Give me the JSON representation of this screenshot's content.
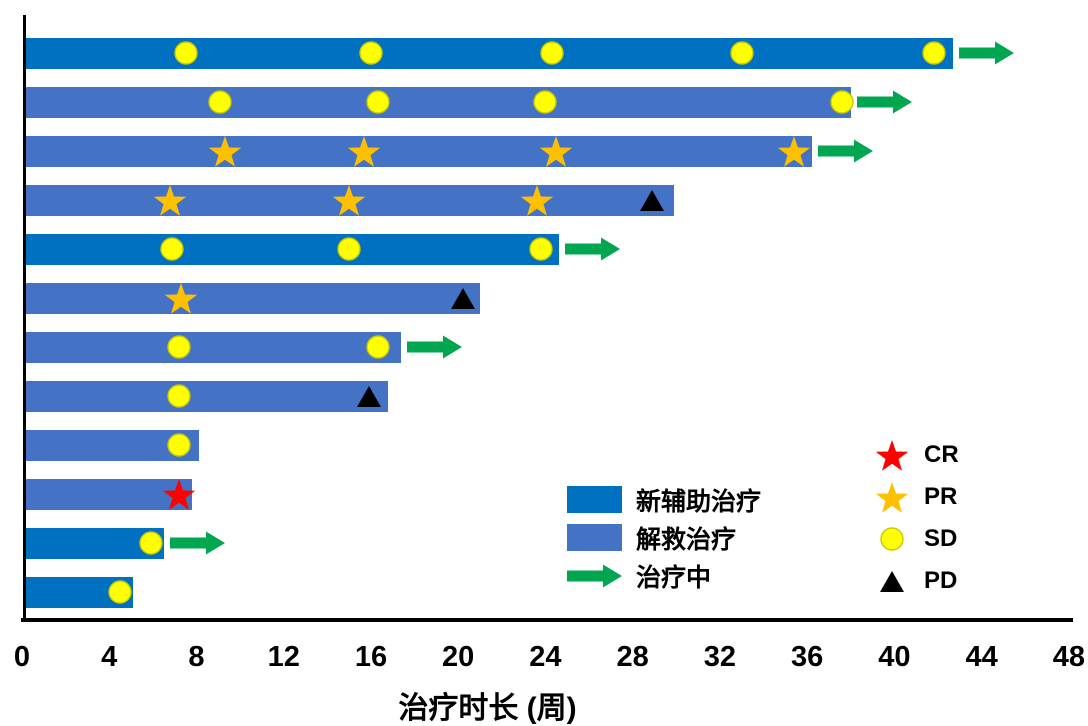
{
  "chart_data": {
    "type": "bar",
    "variant": "swimmer-plot",
    "title": "",
    "xlabel": "治疗时长 (周)",
    "ylabel": "",
    "xlim": [
      0,
      48
    ],
    "x_ticks": [
      0,
      4,
      8,
      12,
      16,
      20,
      24,
      28,
      32,
      36,
      40,
      44,
      48
    ],
    "grid": false,
    "rows": [
      {
        "id": 1,
        "therapy": "neoadjuvant",
        "duration_weeks": 42.7,
        "ongoing": true,
        "events": [
          {
            "type": "SD",
            "week": 7.5
          },
          {
            "type": "SD",
            "week": 16.0
          },
          {
            "type": "SD",
            "week": 24.3
          },
          {
            "type": "SD",
            "week": 33.0
          },
          {
            "type": "SD",
            "week": 41.8
          }
        ]
      },
      {
        "id": 2,
        "therapy": "salvage",
        "duration_weeks": 38.0,
        "ongoing": true,
        "events": [
          {
            "type": "SD",
            "week": 9.1
          },
          {
            "type": "SD",
            "week": 16.3
          },
          {
            "type": "SD",
            "week": 24.0
          },
          {
            "type": "SD",
            "week": 37.6
          }
        ]
      },
      {
        "id": 3,
        "therapy": "salvage",
        "duration_weeks": 36.2,
        "ongoing": true,
        "events": [
          {
            "type": "PR",
            "week": 9.3
          },
          {
            "type": "PR",
            "week": 15.7
          },
          {
            "type": "PR",
            "week": 24.5
          },
          {
            "type": "PR",
            "week": 35.4
          }
        ]
      },
      {
        "id": 4,
        "therapy": "salvage",
        "duration_weeks": 29.9,
        "ongoing": false,
        "events": [
          {
            "type": "PR",
            "week": 6.8
          },
          {
            "type": "PR",
            "week": 15.0
          },
          {
            "type": "PR",
            "week": 23.6
          },
          {
            "type": "PD",
            "week": 28.9
          }
        ]
      },
      {
        "id": 5,
        "therapy": "neoadjuvant",
        "duration_weeks": 24.6,
        "ongoing": true,
        "events": [
          {
            "type": "SD",
            "week": 6.9
          },
          {
            "type": "SD",
            "week": 15.0
          },
          {
            "type": "SD",
            "week": 23.8
          }
        ]
      },
      {
        "id": 6,
        "therapy": "salvage",
        "duration_weeks": 21.0,
        "ongoing": false,
        "events": [
          {
            "type": "PR",
            "week": 7.3
          },
          {
            "type": "PD",
            "week": 20.2
          }
        ]
      },
      {
        "id": 7,
        "therapy": "salvage",
        "duration_weeks": 17.4,
        "ongoing": true,
        "events": [
          {
            "type": "SD",
            "week": 7.2
          },
          {
            "type": "SD",
            "week": 16.3
          }
        ]
      },
      {
        "id": 8,
        "therapy": "salvage",
        "duration_weeks": 16.8,
        "ongoing": false,
        "events": [
          {
            "type": "SD",
            "week": 7.2
          },
          {
            "type": "PD",
            "week": 15.9
          }
        ]
      },
      {
        "id": 9,
        "therapy": "salvage",
        "duration_weeks": 8.1,
        "ongoing": false,
        "events": [
          {
            "type": "SD",
            "week": 7.2
          }
        ]
      },
      {
        "id": 10,
        "therapy": "salvage",
        "duration_weeks": 7.8,
        "ongoing": false,
        "events": [
          {
            "type": "CR",
            "week": 7.2
          }
        ]
      },
      {
        "id": 11,
        "therapy": "neoadjuvant",
        "duration_weeks": 6.5,
        "ongoing": true,
        "events": [
          {
            "type": "SD",
            "week": 5.9
          }
        ]
      },
      {
        "id": 12,
        "therapy": "neoadjuvant",
        "duration_weeks": 5.1,
        "ongoing": false,
        "events": [
          {
            "type": "SD",
            "week": 4.5
          }
        ]
      }
    ]
  },
  "legend": {
    "treatment": [
      {
        "label": "新辅助治疗",
        "swatch": "rect",
        "color": "#0070C0"
      },
      {
        "label": "解救治疗",
        "swatch": "rect",
        "color": "#4472C4"
      },
      {
        "label": "治疗中",
        "swatch": "arrow",
        "color": "#00A650"
      }
    ],
    "response": [
      {
        "code": "CR",
        "shape": "star",
        "color": "#FF0000"
      },
      {
        "code": "PR",
        "shape": "star",
        "color": "#FFC000"
      },
      {
        "code": "SD",
        "shape": "circle",
        "color": "#FFFF00"
      },
      {
        "code": "PD",
        "shape": "triangle",
        "color": "#000000"
      }
    ]
  },
  "colors": {
    "neoadjuvant": "#0070C0",
    "salvage": "#4472C4",
    "ongoing_arrow": "#00A650",
    "cr": "#FF0000",
    "pr": "#FFC000",
    "sd": "#FFFF00",
    "pd": "#000000",
    "axis": "#000000"
  }
}
